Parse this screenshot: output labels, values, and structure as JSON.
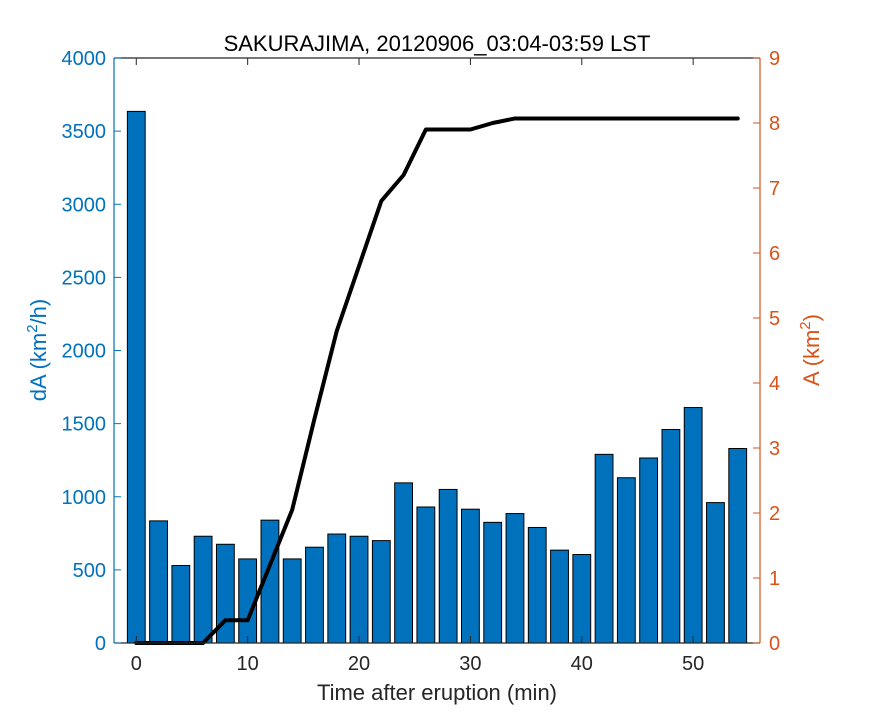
{
  "chart_data": {
    "type": "bar",
    "title": "SAKURAJIMA, 20120906_03:04-03:59 LST",
    "xlabel": "Time after eruption (min)",
    "ylabel_left": {
      "base": "dA (km",
      "sup": "2",
      "tail": "/h)"
    },
    "ylabel_right": {
      "base": "A (km",
      "sup": "2",
      "tail": ")"
    },
    "xlim": [
      -2,
      56
    ],
    "ylim_left": [
      0,
      4000
    ],
    "ylim_right": [
      0,
      9
    ],
    "xticks": [
      0,
      10,
      20,
      30,
      40,
      50
    ],
    "yticks_left": [
      0,
      500,
      1000,
      1500,
      2000,
      2500,
      3000,
      3500,
      4000
    ],
    "yticks_right": [
      0,
      1,
      2,
      3,
      4,
      5,
      6,
      7,
      8,
      9
    ],
    "colors": {
      "bars": "#0072BD",
      "left_axis": "#0072BD",
      "right_axis": "#D95319",
      "line": "#000000"
    },
    "series": [
      {
        "kind": "bar",
        "axis": "left",
        "x": [
          0,
          2,
          4,
          6,
          8,
          10,
          12,
          14,
          16,
          18,
          20,
          22,
          24,
          26,
          28,
          30,
          32,
          34,
          36,
          38,
          40,
          42,
          44,
          46,
          48,
          50,
          52,
          54
        ],
        "values": [
          3635,
          835,
          530,
          730,
          675,
          575,
          840,
          575,
          655,
          745,
          730,
          700,
          1095,
          930,
          1050,
          915,
          825,
          885,
          790,
          635,
          605,
          1290,
          1130,
          1265,
          1460,
          1610,
          960,
          1330
        ]
      },
      {
        "kind": "line",
        "axis": "right",
        "x": [
          0,
          2,
          4,
          6,
          8,
          10,
          12,
          14,
          16,
          18,
          20,
          22,
          24,
          26,
          28,
          30,
          32,
          34,
          36,
          38,
          40,
          42,
          44,
          46,
          48,
          50,
          52,
          54
        ],
        "values": [
          0,
          0,
          0,
          0,
          0.35,
          0.35,
          1.2,
          2.05,
          3.45,
          4.8,
          5.8,
          6.8,
          7.2,
          7.9,
          7.9,
          7.9,
          8.0,
          8.07,
          8.07,
          8.07,
          8.07,
          8.07,
          8.07,
          8.07,
          8.07,
          8.07,
          8.07,
          8.07
        ]
      }
    ]
  }
}
